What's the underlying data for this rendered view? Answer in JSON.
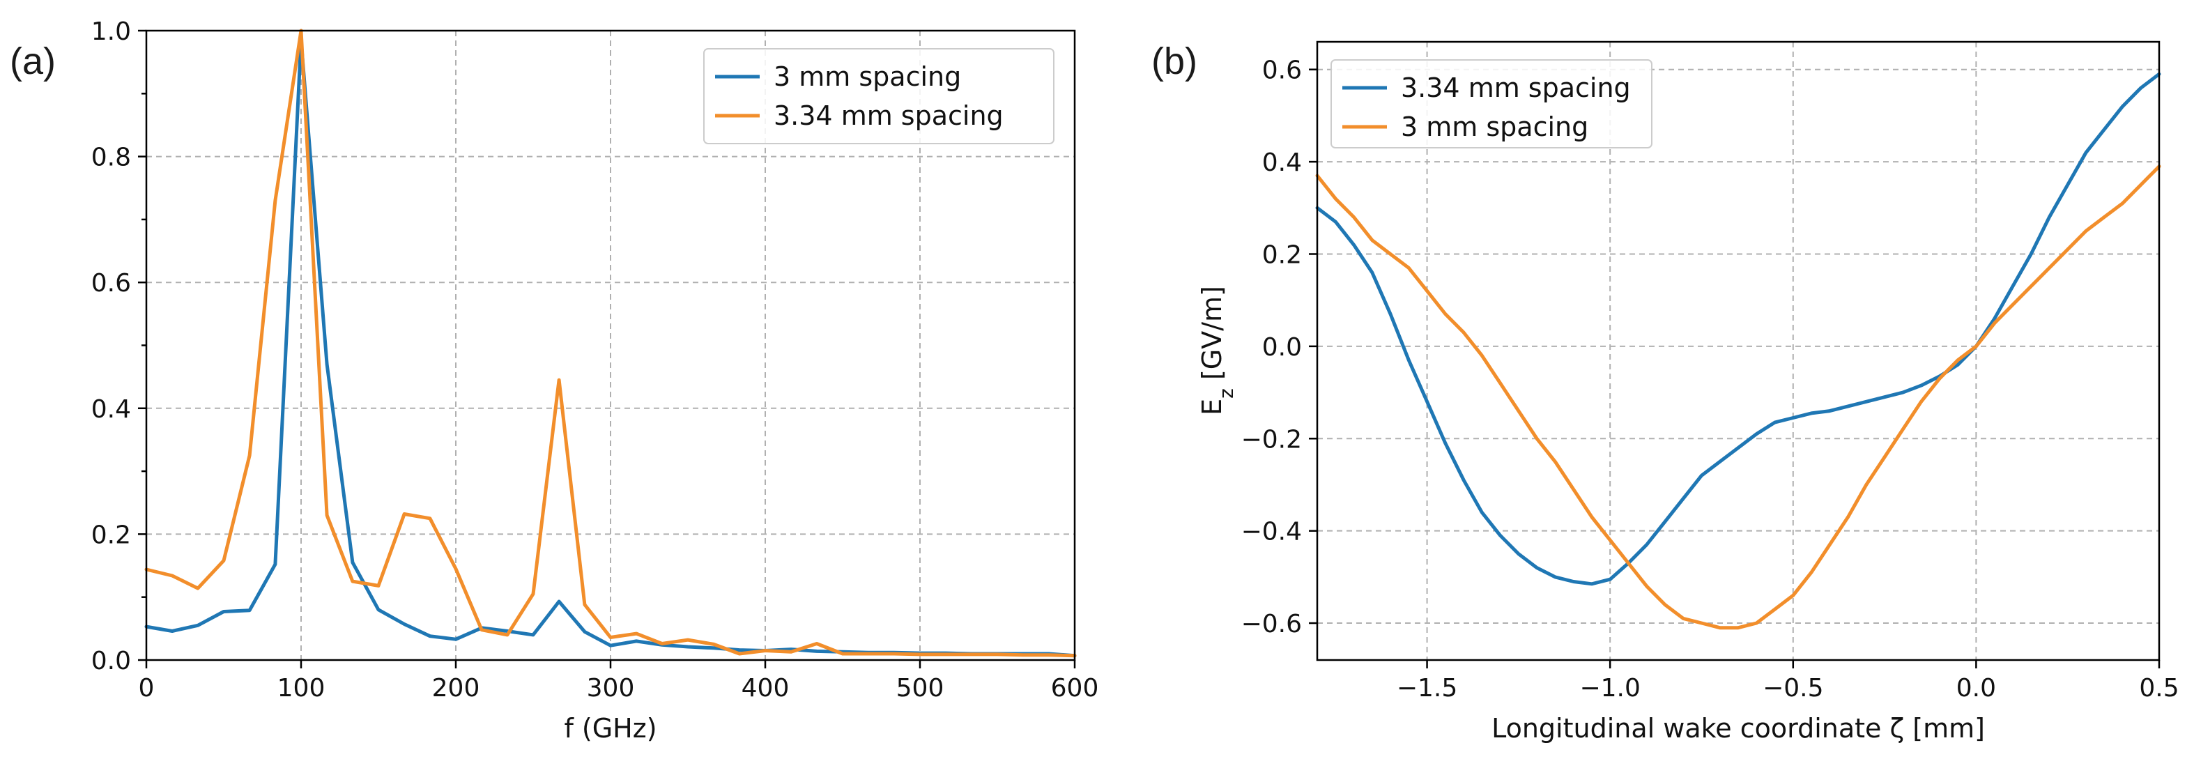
{
  "colors": {
    "blue": "#1f77b4",
    "orange": "#f28e2b"
  },
  "chart_data": [
    {
      "type": "line",
      "panel_label": "(a)",
      "xlabel": "f (GHz)",
      "ylabel": "",
      "xlim": [
        0,
        600
      ],
      "ylim": [
        0,
        1.0
      ],
      "xticks": [
        0,
        100,
        200,
        300,
        400,
        500,
        600
      ],
      "xtick_labels": [
        "0",
        "100",
        "200",
        "300",
        "400",
        "500",
        "600"
      ],
      "yticks": [
        0,
        0.2,
        0.4,
        0.6,
        0.8,
        1.0
      ],
      "ytick_labels": [
        "0.0",
        "0.2",
        "0.4",
        "0.6",
        "0.8",
        "1.0"
      ],
      "grid": true,
      "legend_position": "top-right",
      "series": [
        {
          "name": "3 mm spacing",
          "color": "#1f77b4",
          "x": [
            0,
            16.7,
            33.3,
            50,
            66.7,
            83.3,
            100,
            116.7,
            133.3,
            150,
            166.7,
            183.3,
            200,
            216.7,
            233.3,
            250,
            266.7,
            283.3,
            300,
            316.7,
            333.3,
            350,
            366.7,
            383.3,
            400,
            416.7,
            433.3,
            450,
            466.7,
            483.3,
            500,
            516.7,
            533.3,
            550,
            566.7,
            583.3,
            600
          ],
          "y": [
            0.053,
            0.046,
            0.055,
            0.077,
            0.079,
            0.152,
            0.985,
            0.47,
            0.155,
            0.08,
            0.057,
            0.038,
            0.033,
            0.051,
            0.046,
            0.04,
            0.093,
            0.045,
            0.023,
            0.03,
            0.024,
            0.021,
            0.019,
            0.016,
            0.015,
            0.017,
            0.014,
            0.013,
            0.012,
            0.012,
            0.011,
            0.011,
            0.01,
            0.01,
            0.01,
            0.01,
            0.007
          ]
        },
        {
          "name": "3.34 mm spacing",
          "color": "#f28e2b",
          "x": [
            0,
            16.7,
            33.3,
            50,
            66.7,
            83.3,
            100,
            116.7,
            133.3,
            150,
            166.7,
            183.3,
            200,
            216.7,
            233.3,
            250,
            266.7,
            283.3,
            300,
            316.7,
            333.3,
            350,
            366.7,
            383.3,
            400,
            416.7,
            433.3,
            450,
            466.7,
            483.3,
            500,
            516.7,
            533.3,
            550,
            566.7,
            583.3,
            600
          ],
          "y": [
            0.144,
            0.134,
            0.114,
            0.158,
            0.325,
            0.73,
            1.0,
            0.23,
            0.125,
            0.118,
            0.232,
            0.225,
            0.145,
            0.048,
            0.04,
            0.105,
            0.445,
            0.088,
            0.036,
            0.042,
            0.026,
            0.032,
            0.025,
            0.01,
            0.015,
            0.013,
            0.026,
            0.01,
            0.01,
            0.01,
            0.009,
            0.009,
            0.009,
            0.009,
            0.008,
            0.008,
            0.007
          ]
        }
      ]
    },
    {
      "type": "line",
      "panel_label": "(b)",
      "xlabel": "Longitudinal wake coordinate ζ [mm]",
      "ylabel_main": "E",
      "ylabel_sub": "z",
      "ylabel_unit": " [GV/m]",
      "xlim": [
        -1.8,
        0.5
      ],
      "ylim": [
        -0.68,
        0.66
      ],
      "xticks": [
        -1.5,
        -1.0,
        -0.5,
        0.0,
        0.5
      ],
      "xtick_labels": [
        "−1.5",
        "−1.0",
        "−0.5",
        "0.0",
        "0.5"
      ],
      "yticks": [
        -0.6,
        -0.4,
        -0.2,
        0.0,
        0.2,
        0.4,
        0.6
      ],
      "ytick_labels": [
        "−0.6",
        "−0.4",
        "−0.2",
        "0.0",
        "0.2",
        "0.4",
        "0.6"
      ],
      "grid": true,
      "legend_position": "top-left",
      "series": [
        {
          "name": "3.34 mm spacing",
          "color": "#1f77b4",
          "x": [
            -1.8,
            -1.75,
            -1.7,
            -1.65,
            -1.6,
            -1.55,
            -1.5,
            -1.45,
            -1.4,
            -1.35,
            -1.3,
            -1.25,
            -1.2,
            -1.15,
            -1.1,
            -1.05,
            -1.0,
            -0.95,
            -0.9,
            -0.85,
            -0.8,
            -0.75,
            -0.7,
            -0.65,
            -0.6,
            -0.55,
            -0.5,
            -0.45,
            -0.4,
            -0.35,
            -0.3,
            -0.25,
            -0.2,
            -0.15,
            -0.1,
            -0.05,
            0.0,
            0.05,
            0.1,
            0.15,
            0.2,
            0.25,
            0.3,
            0.35,
            0.4,
            0.45,
            0.5
          ],
          "y": [
            0.3,
            0.27,
            0.22,
            0.16,
            0.07,
            -0.03,
            -0.12,
            -0.21,
            -0.29,
            -0.36,
            -0.41,
            -0.45,
            -0.48,
            -0.5,
            -0.51,
            -0.515,
            -0.505,
            -0.47,
            -0.43,
            -0.38,
            -0.33,
            -0.28,
            -0.25,
            -0.22,
            -0.19,
            -0.165,
            -0.155,
            -0.145,
            -0.14,
            -0.13,
            -0.12,
            -0.11,
            -0.1,
            -0.085,
            -0.065,
            -0.04,
            0.0,
            0.06,
            0.13,
            0.2,
            0.28,
            0.35,
            0.42,
            0.47,
            0.52,
            0.56,
            0.59
          ]
        },
        {
          "name": "3 mm spacing",
          "color": "#f28e2b",
          "x": [
            -1.8,
            -1.75,
            -1.7,
            -1.65,
            -1.6,
            -1.55,
            -1.5,
            -1.45,
            -1.4,
            -1.35,
            -1.3,
            -1.25,
            -1.2,
            -1.15,
            -1.1,
            -1.05,
            -1.0,
            -0.95,
            -0.9,
            -0.85,
            -0.8,
            -0.75,
            -0.7,
            -0.65,
            -0.6,
            -0.55,
            -0.5,
            -0.45,
            -0.4,
            -0.35,
            -0.3,
            -0.25,
            -0.2,
            -0.15,
            -0.1,
            -0.05,
            0.0,
            0.05,
            0.1,
            0.15,
            0.2,
            0.25,
            0.3,
            0.35,
            0.4,
            0.45,
            0.5
          ],
          "y": [
            0.37,
            0.32,
            0.28,
            0.23,
            0.2,
            0.17,
            0.12,
            0.07,
            0.03,
            -0.02,
            -0.08,
            -0.14,
            -0.2,
            -0.25,
            -0.31,
            -0.37,
            -0.42,
            -0.47,
            -0.52,
            -0.56,
            -0.59,
            -0.6,
            -0.61,
            -0.61,
            -0.6,
            -0.57,
            -0.54,
            -0.49,
            -0.43,
            -0.37,
            -0.3,
            -0.24,
            -0.18,
            -0.12,
            -0.07,
            -0.03,
            0.0,
            0.05,
            0.09,
            0.13,
            0.17,
            0.21,
            0.25,
            0.28,
            0.31,
            0.35,
            0.39
          ]
        }
      ]
    }
  ]
}
